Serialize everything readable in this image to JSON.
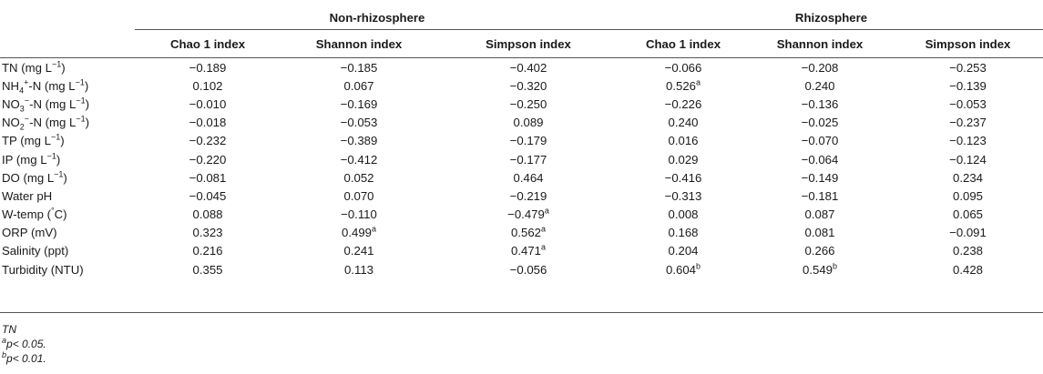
{
  "groups": [
    "Non-rhizosphere",
    "Rhizosphere"
  ],
  "columns": [
    "Chao 1 index",
    "Shannon index",
    "Simpson index",
    "Chao 1 index",
    "Shannon index",
    "Simpson index"
  ],
  "rows": [
    {
      "label": [
        "TN (mg L",
        "−1",
        ")"
      ],
      "values": [
        [
          "−0.189",
          ""
        ],
        [
          "−0.185",
          ""
        ],
        [
          "−0.402",
          ""
        ],
        [
          "−0.066",
          ""
        ],
        [
          "−0.208",
          ""
        ],
        [
          "−0.253",
          ""
        ]
      ]
    },
    {
      "label": [
        "NH",
        "4",
        "+",
        "-N (mg L",
        "−1",
        ")"
      ],
      "values": [
        [
          "0.102",
          ""
        ],
        [
          "0.067",
          ""
        ],
        [
          "−0.320",
          ""
        ],
        [
          "0.526",
          "a"
        ],
        [
          "0.240",
          ""
        ],
        [
          "−0.139",
          ""
        ]
      ]
    },
    {
      "label": [
        "NO",
        "3",
        "−",
        "-N (mg L",
        "−1",
        ")"
      ],
      "values": [
        [
          "−0.010",
          ""
        ],
        [
          "−0.169",
          ""
        ],
        [
          "−0.250",
          ""
        ],
        [
          "−0.226",
          ""
        ],
        [
          "−0.136",
          ""
        ],
        [
          "−0.053",
          ""
        ]
      ]
    },
    {
      "label": [
        "NO",
        "2",
        "−",
        "-N (mg L",
        "−1",
        ")"
      ],
      "values": [
        [
          "−0.018",
          ""
        ],
        [
          "−0.053",
          ""
        ],
        [
          "0.089",
          ""
        ],
        [
          "0.240",
          ""
        ],
        [
          "−0.025",
          ""
        ],
        [
          "−0.237",
          ""
        ]
      ]
    },
    {
      "label": [
        "TP (mg L",
        "−1",
        ")"
      ],
      "values": [
        [
          "−0.232",
          ""
        ],
        [
          "−0.389",
          ""
        ],
        [
          "−0.179",
          ""
        ],
        [
          "0.016",
          ""
        ],
        [
          "−0.070",
          ""
        ],
        [
          "−0.123",
          ""
        ]
      ]
    },
    {
      "label": [
        "IP (mg L",
        "−1",
        ")"
      ],
      "values": [
        [
          "−0.220",
          ""
        ],
        [
          "−0.412",
          ""
        ],
        [
          "−0.177",
          ""
        ],
        [
          "0.029",
          ""
        ],
        [
          "−0.064",
          ""
        ],
        [
          "−0.124",
          ""
        ]
      ]
    },
    {
      "label": [
        "DO (mg L",
        "−1",
        ")"
      ],
      "values": [
        [
          "−0.081",
          ""
        ],
        [
          "0.052",
          ""
        ],
        [
          "0.464",
          ""
        ],
        [
          "−0.416",
          ""
        ],
        [
          "−0.149",
          ""
        ],
        [
          "0.234",
          ""
        ]
      ]
    },
    {
      "label": [
        "Water pH"
      ],
      "values": [
        [
          "−0.045",
          ""
        ],
        [
          "0.070",
          ""
        ],
        [
          "−0.219",
          ""
        ],
        [
          "−0.313",
          ""
        ],
        [
          "−0.181",
          ""
        ],
        [
          "0.095",
          ""
        ]
      ]
    },
    {
      "label": [
        "W-temp (",
        "°",
        "C)"
      ],
      "values": [
        [
          "0.088",
          ""
        ],
        [
          "−0.110",
          ""
        ],
        [
          "−0.479",
          "a"
        ],
        [
          "0.008",
          ""
        ],
        [
          "0.087",
          ""
        ],
        [
          "0.065",
          ""
        ]
      ]
    },
    {
      "label": [
        "ORP (mV)"
      ],
      "values": [
        [
          "0.323",
          ""
        ],
        [
          "0.499",
          "a"
        ],
        [
          "0.562",
          "a"
        ],
        [
          "0.168",
          ""
        ],
        [
          "0.081",
          ""
        ],
        [
          "−0.091",
          ""
        ]
      ]
    },
    {
      "label": [
        "Salinity (ppt)"
      ],
      "values": [
        [
          "0.216",
          ""
        ],
        [
          "0.241",
          ""
        ],
        [
          "0.471",
          "a"
        ],
        [
          "0.204",
          ""
        ],
        [
          "0.266",
          ""
        ],
        [
          "0.238",
          ""
        ]
      ]
    },
    {
      "label": [
        "Turbidity (NTU)"
      ],
      "values": [
        [
          "0.355",
          ""
        ],
        [
          "0.113",
          ""
        ],
        [
          "−0.056",
          ""
        ],
        [
          "0.604",
          "b"
        ],
        [
          "0.549",
          "b"
        ],
        [
          "0.428",
          ""
        ]
      ]
    }
  ],
  "footnotes": {
    "abbr": "TN",
    "a_mark": "a",
    "a_text": "p< 0.05.",
    "b_mark": "b",
    "b_text": "p< 0.01."
  }
}
